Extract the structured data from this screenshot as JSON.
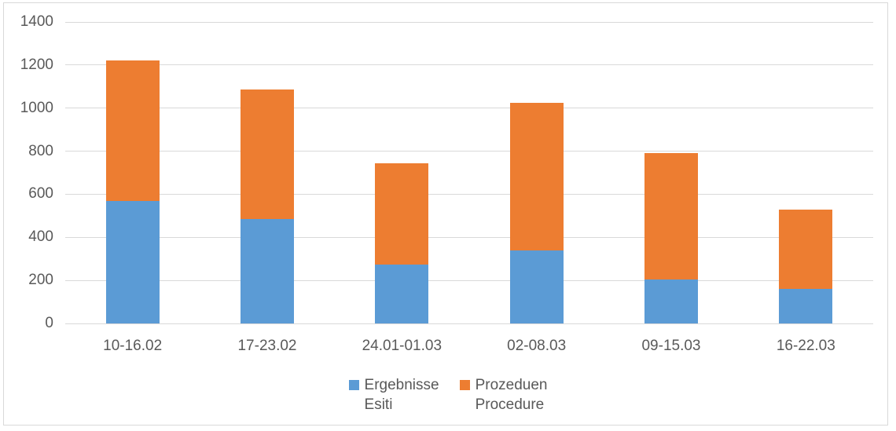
{
  "chart_data": {
    "type": "bar",
    "stacked": true,
    "title": "",
    "xlabel": "",
    "ylabel": "",
    "categories": [
      "10-16.02",
      "17-23.02",
      "24.01-01.03",
      "02-08.03",
      "09-15.03",
      "16-22.03"
    ],
    "series": [
      {
        "name": "Ergebnisse Esiti",
        "color": "#5B9BD5",
        "values": [
          570,
          485,
          275,
          340,
          205,
          160
        ]
      },
      {
        "name": "Prozeduen Procedure",
        "color": "#ED7D31",
        "values": [
          650,
          600,
          470,
          685,
          585,
          370
        ]
      }
    ],
    "stack_totals": [
      1220,
      1085,
      745,
      1025,
      790,
      530
    ],
    "ylim": [
      0,
      1400
    ],
    "yticks": [
      0,
      200,
      400,
      600,
      800,
      1000,
      1200,
      1400
    ],
    "grid": true,
    "legend_position": "bottom",
    "legend": [
      {
        "line1": "Ergebnisse",
        "line2": "Esiti",
        "color": "#5B9BD5"
      },
      {
        "line1": "Prozeduen",
        "line2": "Procedure",
        "color": "#ED7D31"
      }
    ]
  },
  "colors": {
    "series_blue": "#5B9BD5",
    "series_orange": "#ED7D31",
    "gridline": "#D9D9D9",
    "axis_text": "#595959",
    "frame_border": "#D9D9D9",
    "background": "#FFFFFF"
  }
}
